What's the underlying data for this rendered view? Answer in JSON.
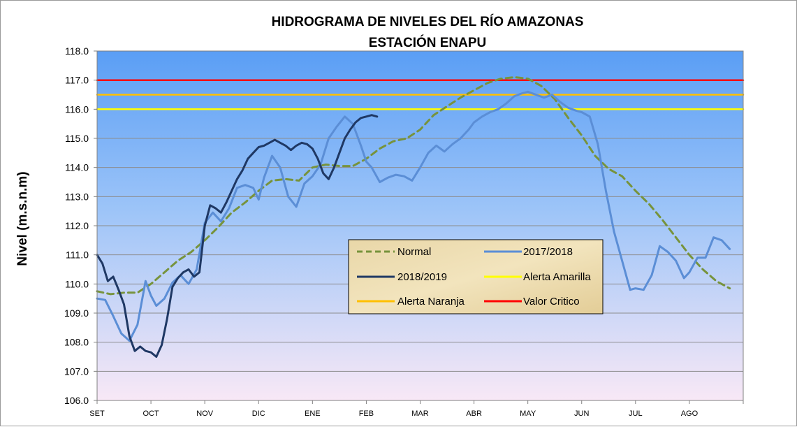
{
  "chart_data": {
    "type": "line",
    "title": "HIDROGRAMA DE NIVELES DEL RÍO AMAZONAS",
    "subtitle": "ESTACIÓN ENAPU",
    "ylabel": "Nivel (m.s.n.m)",
    "xlabel": "",
    "ylim": [
      106.0,
      118.0
    ],
    "yticks": [
      "106.0",
      "107.0",
      "108.0",
      "109.0",
      "110.0",
      "111.0",
      "112.0",
      "113.0",
      "114.0",
      "115.0",
      "116.0",
      "117.0",
      "118.0"
    ],
    "xlim": [
      0,
      12
    ],
    "categories": [
      "SET",
      "OCT",
      "NOV",
      "DIC",
      "ENE",
      "FEB",
      "MAR",
      "ABR",
      "MAY",
      "JUN",
      "JUL",
      "AGO"
    ],
    "grid": true,
    "legend_position": "center-right",
    "background_colors": [
      "#5a9ef5",
      "#f8e8f6"
    ],
    "series": [
      {
        "name": "Normal",
        "color": "#77933c",
        "style": "dashed",
        "x": [
          0,
          0.25,
          0.5,
          0.75,
          1,
          1.25,
          1.5,
          1.75,
          2,
          2.25,
          2.5,
          2.75,
          3,
          3.25,
          3.5,
          3.75,
          4,
          4.25,
          4.5,
          4.75,
          5,
          5.25,
          5.5,
          5.75,
          6,
          6.25,
          6.5,
          6.75,
          7,
          7.25,
          7.5,
          7.75,
          8,
          8.25,
          8.5,
          8.75,
          9,
          9.25,
          9.5,
          9.75,
          10,
          10.25,
          10.5,
          10.75,
          11,
          11.25,
          11.5,
          11.75
        ],
        "y": [
          109.75,
          109.65,
          109.7,
          109.7,
          110.0,
          110.4,
          110.8,
          111.1,
          111.5,
          111.95,
          112.45,
          112.8,
          113.2,
          113.55,
          113.6,
          113.55,
          114.0,
          114.1,
          114.05,
          114.05,
          114.3,
          114.65,
          114.9,
          115.0,
          115.3,
          115.8,
          116.1,
          116.4,
          116.65,
          116.9,
          117.05,
          117.1,
          117.05,
          116.8,
          116.35,
          115.7,
          115.1,
          114.4,
          113.95,
          113.7,
          113.2,
          112.75,
          112.2,
          111.6,
          111.0,
          110.5,
          110.1,
          109.85
        ]
      },
      {
        "name": "2017/2018",
        "color": "#5b8ed6",
        "style": "solid",
        "x": [
          0,
          0.15,
          0.3,
          0.45,
          0.6,
          0.75,
          0.9,
          1.0,
          1.1,
          1.25,
          1.4,
          1.55,
          1.7,
          1.85,
          2.0,
          2.15,
          2.3,
          2.45,
          2.6,
          2.75,
          2.9,
          3.0,
          3.1,
          3.25,
          3.4,
          3.55,
          3.7,
          3.85,
          4.0,
          4.15,
          4.3,
          4.45,
          4.6,
          4.75,
          4.9,
          5.0,
          5.1,
          5.25,
          5.4,
          5.55,
          5.7,
          5.85,
          6.0,
          6.15,
          6.3,
          6.45,
          6.6,
          6.75,
          6.9,
          7.0,
          7.15,
          7.3,
          7.45,
          7.6,
          7.75,
          7.9,
          8.0,
          8.15,
          8.3,
          8.45,
          8.6,
          8.75,
          8.9,
          9.0,
          9.15,
          9.3,
          9.45,
          9.6,
          9.75,
          9.9,
          10.0,
          10.15,
          10.3,
          10.45,
          10.6,
          10.75,
          10.9,
          11.0,
          11.15,
          11.3,
          11.45,
          11.6,
          11.75
        ],
        "y": [
          109.5,
          109.45,
          108.9,
          108.3,
          108.05,
          108.6,
          110.1,
          109.6,
          109.25,
          109.5,
          110.05,
          110.3,
          110.0,
          110.5,
          112.1,
          112.45,
          112.15,
          112.6,
          113.3,
          113.4,
          113.3,
          112.9,
          113.65,
          114.4,
          114.0,
          113.0,
          112.65,
          113.45,
          113.7,
          114.1,
          115.0,
          115.4,
          115.75,
          115.5,
          114.75,
          114.2,
          114.0,
          113.5,
          113.65,
          113.75,
          113.7,
          113.55,
          114.0,
          114.5,
          114.75,
          114.55,
          114.8,
          115.0,
          115.3,
          115.55,
          115.75,
          115.9,
          116.0,
          116.2,
          116.45,
          116.55,
          116.6,
          116.5,
          116.4,
          116.5,
          116.25,
          116.05,
          115.95,
          115.9,
          115.75,
          114.8,
          113.2,
          111.8,
          110.8,
          109.8,
          109.85,
          109.8,
          110.3,
          111.3,
          111.1,
          110.8,
          110.2,
          110.4,
          110.9,
          110.9,
          111.6,
          111.5,
          111.2
        ]
      },
      {
        "name": "2018/2019",
        "color": "#1f3864",
        "style": "solid",
        "x": [
          0,
          0.1,
          0.2,
          0.3,
          0.4,
          0.5,
          0.6,
          0.7,
          0.8,
          0.9,
          1.0,
          1.1,
          1.2,
          1.3,
          1.4,
          1.5,
          1.6,
          1.7,
          1.8,
          1.9,
          2.0,
          2.1,
          2.2,
          2.3,
          2.4,
          2.5,
          2.6,
          2.7,
          2.8,
          2.9,
          3.0,
          3.1,
          3.2,
          3.3,
          3.4,
          3.5,
          3.6,
          3.7,
          3.8,
          3.9,
          4.0,
          4.1,
          4.2,
          4.3,
          4.4,
          4.5,
          4.6,
          4.7,
          4.8,
          4.9,
          5.0,
          5.1,
          5.2
        ],
        "y": [
          111.0,
          110.7,
          110.1,
          110.25,
          109.8,
          109.3,
          108.2,
          107.7,
          107.85,
          107.7,
          107.65,
          107.5,
          107.9,
          108.8,
          109.9,
          110.2,
          110.4,
          110.5,
          110.25,
          110.4,
          112.0,
          112.7,
          112.6,
          112.45,
          112.8,
          113.2,
          113.6,
          113.9,
          114.3,
          114.5,
          114.7,
          114.75,
          114.85,
          114.95,
          114.85,
          114.75,
          114.6,
          114.75,
          114.85,
          114.8,
          114.65,
          114.3,
          113.8,
          113.6,
          114.0,
          114.5,
          115.0,
          115.3,
          115.55,
          115.7,
          115.75,
          115.8,
          115.75
        ]
      },
      {
        "name": "Alerta Amarilla",
        "color": "#ffff00",
        "style": "solid",
        "x": [
          0,
          12
        ],
        "y": [
          116.0,
          116.0
        ]
      },
      {
        "name": "Alerta Naranja",
        "color": "#ffc000",
        "style": "solid",
        "x": [
          0,
          12
        ],
        "y": [
          116.5,
          116.5
        ]
      },
      {
        "name": "Valor Critico",
        "color": "#ff0000",
        "style": "solid",
        "x": [
          0,
          12
        ],
        "y": [
          117.0,
          117.0
        ]
      }
    ],
    "legend": {
      "items": [
        "Normal",
        "2017/2018",
        "2018/2019",
        "Alerta Amarilla",
        "Alerta Naranja",
        "Valor Critico"
      ]
    }
  }
}
